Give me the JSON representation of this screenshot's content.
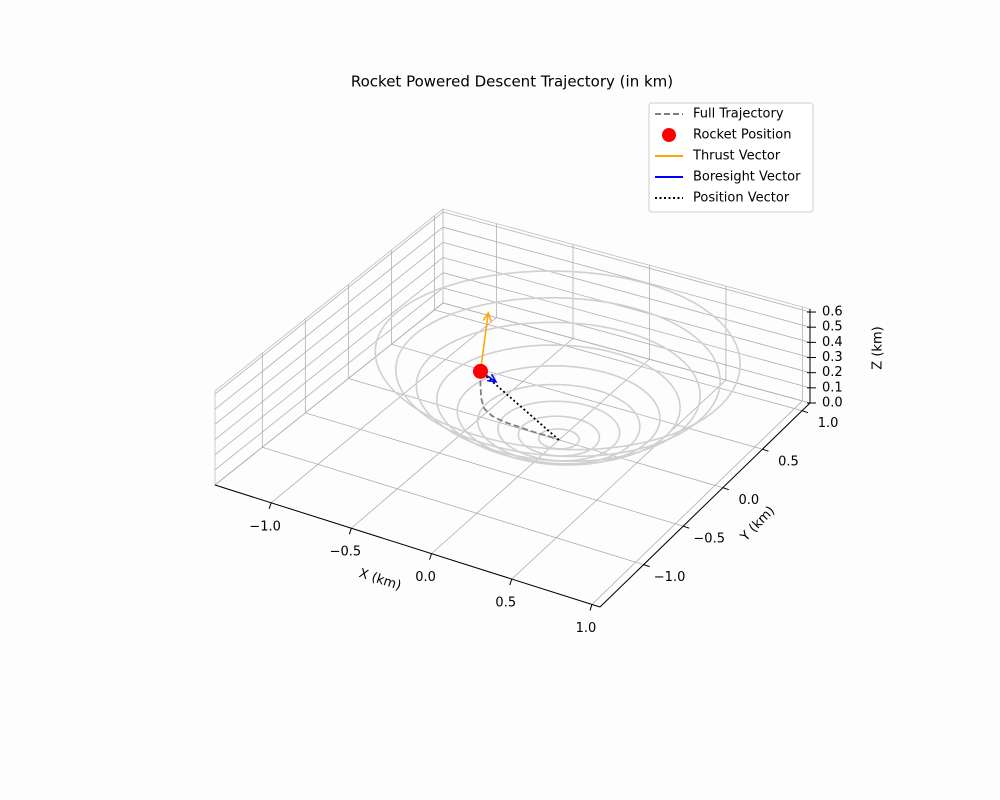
{
  "chart_data": {
    "type": "line3d",
    "title": "Rocket Powered Descent Trajectory (in km)",
    "x_label": "X (km)",
    "y_label": "Y (km)",
    "z_label": "Z (km)",
    "xlim": [
      -1.35,
      1.05
    ],
    "ylim": [
      -1.55,
      1.1
    ],
    "zlim": [
      0,
      0.62
    ],
    "xticks": [
      {
        "value": -1.0,
        "label": "−1.0"
      },
      {
        "value": -0.5,
        "label": "−0.5"
      },
      {
        "value": 0.0,
        "label": "0.0"
      },
      {
        "value": 0.5,
        "label": "0.5"
      },
      {
        "value": 1.0,
        "label": "1.0"
      }
    ],
    "yticks": [
      {
        "value": -1.0,
        "label": "−1.0"
      },
      {
        "value": -0.5,
        "label": "−0.5"
      },
      {
        "value": 0.0,
        "label": "0.0"
      },
      {
        "value": 0.5,
        "label": "0.5"
      },
      {
        "value": 1.0,
        "label": "1.0"
      }
    ],
    "zticks": [
      {
        "value": 0.0,
        "label": "0.0"
      },
      0.1,
      0.2,
      0.3,
      0.4,
      0.5,
      0.6
    ],
    "grid": true,
    "legend": "upper right",
    "contours": {
      "color": "#d0d0d0",
      "radii": [
        0.115,
        0.23,
        0.345,
        0.46,
        0.575,
        0.69,
        0.805,
        0.92,
        1.035
      ],
      "z": [
        0.007,
        0.026,
        0.06,
        0.106,
        0.165,
        0.238,
        0.324,
        0.423,
        0.536
      ]
    },
    "series": [
      {
        "name": "Full Trajectory",
        "color": "#808080",
        "style": "dashed",
        "x": [
          -0.53,
          -0.53,
          -0.52,
          -0.49,
          -0.43,
          -0.35,
          -0.25,
          -0.15,
          -0.07,
          0
        ],
        "y": [
          0.05,
          0.05,
          0.04,
          0.02,
          0.0,
          -0.01,
          -0.01,
          -0.01,
          0,
          0
        ],
        "z": [
          0.27,
          0.18,
          0.1,
          0.05,
          0.03,
          0.02,
          0.015,
          0.01,
          0.005,
          0
        ]
      },
      {
        "name": "Rocket Position",
        "color": "#ff0000",
        "style": "marker",
        "x": [
          -0.53
        ],
        "y": [
          0.05
        ],
        "z": [
          0.27
        ]
      },
      {
        "name": "Thrust Vector",
        "color": "#ffa500",
        "style": "arrow",
        "x": [
          -0.53,
          -0.48
        ],
        "y": [
          0.05,
          0.05
        ],
        "z": [
          0.27,
          0.67
        ]
      },
      {
        "name": "Boresight Vector",
        "color": "#0000ff",
        "style": "arrow",
        "x": [
          -0.53,
          -0.43
        ],
        "y": [
          0.05,
          0.05
        ],
        "z": [
          0.27,
          0.23
        ]
      },
      {
        "name": "Position Vector",
        "color": "#000000",
        "style": "dotted",
        "x": [
          0,
          -0.53
        ],
        "y": [
          0,
          0.05
        ],
        "z": [
          0,
          0.27
        ]
      }
    ]
  }
}
